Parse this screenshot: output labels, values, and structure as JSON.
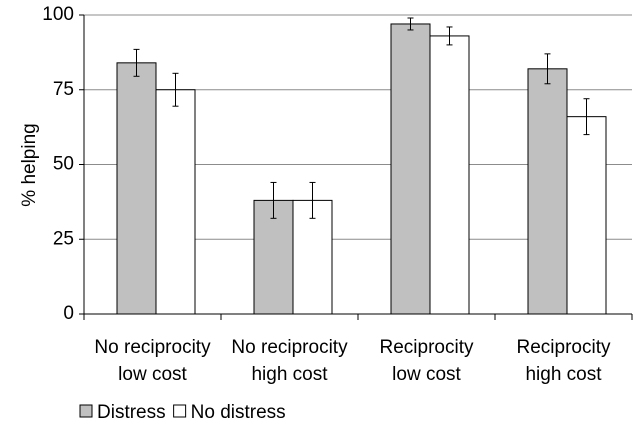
{
  "chart_data": {
    "type": "bar",
    "ylabel": "% helping",
    "ylim": [
      0,
      100
    ],
    "yticks": [
      0,
      25,
      50,
      75,
      100
    ],
    "grid": true,
    "legend_position": "bottom-left",
    "categories": [
      [
        "No reciprocity",
        "low cost"
      ],
      [
        "No reciprocity",
        "high cost"
      ],
      [
        "Reciprocity",
        "low cost"
      ],
      [
        "Reciprocity",
        "high cost"
      ]
    ],
    "series": [
      {
        "name": "Distress",
        "color": "#c0c0c0",
        "values": [
          84,
          38,
          97,
          82
        ],
        "err": [
          4.5,
          6,
          2,
          5
        ]
      },
      {
        "name": "No distress",
        "color": "#ffffff",
        "values": [
          75,
          38,
          93,
          66
        ],
        "err": [
          5.5,
          6,
          3,
          6
        ]
      }
    ]
  }
}
